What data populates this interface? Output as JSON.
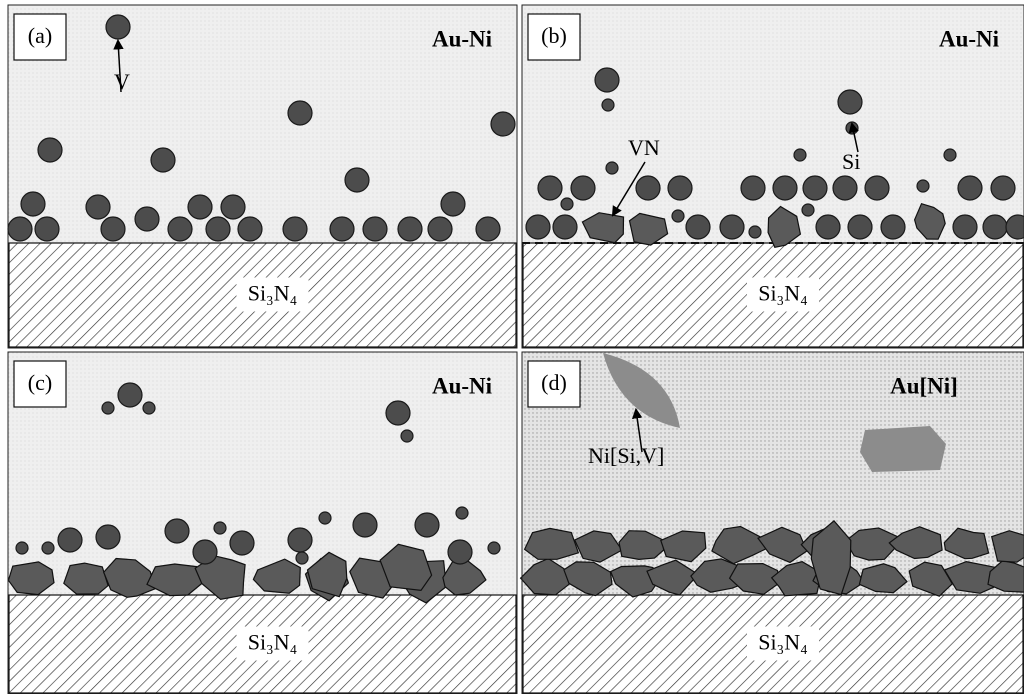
{
  "panels": [
    {
      "label": "(a)",
      "matrix": "Au-Ni",
      "substrate": "Si₃N₄",
      "annotations": [
        "V"
      ]
    },
    {
      "label": "(b)",
      "matrix": "Au-Ni",
      "substrate": "Si₃N₄",
      "annotations": [
        "VN",
        "Si"
      ]
    },
    {
      "label": "(c)",
      "matrix": "Au-Ni",
      "substrate": "Si₃N₄"
    },
    {
      "label": "(d)",
      "matrix": "Au[Ni]",
      "substrate": "Si₃N₄",
      "annotations": [
        "Ni[Si,V]"
      ]
    }
  ]
}
